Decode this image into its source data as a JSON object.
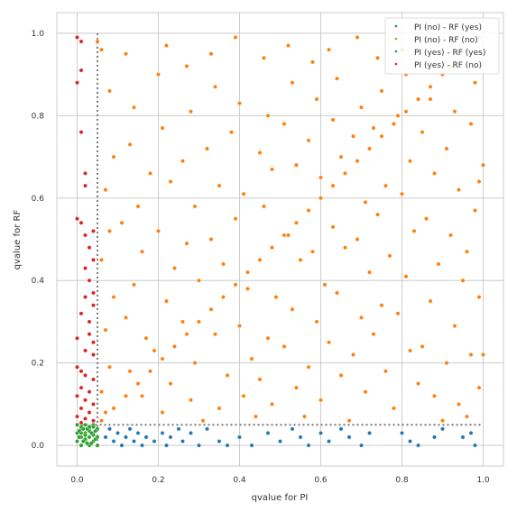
{
  "chart_data": {
    "type": "scatter",
    "title": "",
    "xlabel": "qvalue for PI",
    "ylabel": "qvalue for RF",
    "xlim": [
      -0.05,
      1.05
    ],
    "ylim": [
      -0.05,
      1.05
    ],
    "xticks": [
      "0.0",
      "0.2",
      "0.4",
      "0.6",
      "0.8",
      "1.0"
    ],
    "yticks": [
      "0.0",
      "0.2",
      "0.4",
      "0.6",
      "0.8",
      "1.0"
    ],
    "grid": true,
    "legend_position": "top-right",
    "threshold": 0.05,
    "series": [
      {
        "name": "PI (no)  - RF (yes)",
        "color": "#1f77b4",
        "points": [
          [
            0.07,
            0.02
          ],
          [
            0.08,
            0.04
          ],
          [
            0.09,
            0.01
          ],
          [
            0.1,
            0.03
          ],
          [
            0.11,
            0.0
          ],
          [
            0.12,
            0.02
          ],
          [
            0.13,
            0.04
          ],
          [
            0.14,
            0.01
          ],
          [
            0.15,
            0.03
          ],
          [
            0.16,
            0.0
          ],
          [
            0.17,
            0.02
          ],
          [
            0.19,
            0.01
          ],
          [
            0.21,
            0.03
          ],
          [
            0.22,
            0.0
          ],
          [
            0.23,
            0.02
          ],
          [
            0.25,
            0.04
          ],
          [
            0.26,
            0.01
          ],
          [
            0.28,
            0.03
          ],
          [
            0.3,
            0.0
          ],
          [
            0.32,
            0.04
          ],
          [
            0.35,
            0.01
          ],
          [
            0.37,
            0.0
          ],
          [
            0.4,
            0.02
          ],
          [
            0.43,
            0.0
          ],
          [
            0.47,
            0.03
          ],
          [
            0.5,
            0.01
          ],
          [
            0.53,
            0.04
          ],
          [
            0.55,
            0.02
          ],
          [
            0.57,
            0.0
          ],
          [
            0.6,
            0.03
          ],
          [
            0.62,
            0.01
          ],
          [
            0.65,
            0.04
          ],
          [
            0.67,
            0.02
          ],
          [
            0.7,
            0.0
          ],
          [
            0.72,
            0.03
          ],
          [
            0.8,
            0.03
          ],
          [
            0.82,
            0.01
          ],
          [
            0.84,
            0.0
          ],
          [
            0.88,
            0.02
          ],
          [
            0.9,
            0.04
          ],
          [
            0.95,
            0.02
          ],
          [
            0.97,
            0.03
          ],
          [
            0.98,
            0.0
          ]
        ]
      },
      {
        "name": "PI (no)  - RF (no)",
        "color": "#ff7f0e",
        "points": [
          [
            0.05,
            0.98
          ],
          [
            0.06,
            0.96
          ],
          [
            0.08,
            0.86
          ],
          [
            0.09,
            0.7
          ],
          [
            0.07,
            0.62
          ],
          [
            0.08,
            0.52
          ],
          [
            0.06,
            0.45
          ],
          [
            0.09,
            0.36
          ],
          [
            0.07,
            0.28
          ],
          [
            0.08,
            0.19
          ],
          [
            0.06,
            0.13
          ],
          [
            0.07,
            0.08
          ],
          [
            0.12,
            0.95
          ],
          [
            0.14,
            0.82
          ],
          [
            0.13,
            0.73
          ],
          [
            0.15,
            0.58
          ],
          [
            0.11,
            0.54
          ],
          [
            0.16,
            0.47
          ],
          [
            0.14,
            0.39
          ],
          [
            0.12,
            0.31
          ],
          [
            0.17,
            0.26
          ],
          [
            0.13,
            0.18
          ],
          [
            0.16,
            0.12
          ],
          [
            0.18,
            0.66
          ],
          [
            0.2,
            0.9
          ],
          [
            0.22,
            0.97
          ],
          [
            0.21,
            0.77
          ],
          [
            0.23,
            0.64
          ],
          [
            0.2,
            0.52
          ],
          [
            0.24,
            0.43
          ],
          [
            0.22,
            0.35
          ],
          [
            0.19,
            0.23
          ],
          [
            0.23,
            0.15
          ],
          [
            0.21,
            0.08
          ],
          [
            0.27,
            0.92
          ],
          [
            0.28,
            0.81
          ],
          [
            0.26,
            0.69
          ],
          [
            0.29,
            0.58
          ],
          [
            0.27,
            0.49
          ],
          [
            0.3,
            0.4
          ],
          [
            0.26,
            0.3
          ],
          [
            0.29,
            0.2
          ],
          [
            0.28,
            0.11
          ],
          [
            0.31,
            0.06
          ],
          [
            0.33,
            0.95
          ],
          [
            0.34,
            0.87
          ],
          [
            0.32,
            0.72
          ],
          [
            0.35,
            0.63
          ],
          [
            0.33,
            0.5
          ],
          [
            0.36,
            0.44
          ],
          [
            0.34,
            0.27
          ],
          [
            0.37,
            0.17
          ],
          [
            0.35,
            0.09
          ],
          [
            0.39,
            0.99
          ],
          [
            0.4,
            0.83
          ],
          [
            0.38,
            0.76
          ],
          [
            0.41,
            0.61
          ],
          [
            0.39,
            0.55
          ],
          [
            0.42,
            0.38
          ],
          [
            0.4,
            0.29
          ],
          [
            0.43,
            0.21
          ],
          [
            0.41,
            0.12
          ],
          [
            0.44,
            0.07
          ],
          [
            0.46,
            0.94
          ],
          [
            0.47,
            0.8
          ],
          [
            0.45,
            0.71
          ],
          [
            0.48,
            0.67
          ],
          [
            0.46,
            0.58
          ],
          [
            0.49,
            0.36
          ],
          [
            0.47,
            0.26
          ],
          [
            0.45,
            0.16
          ],
          [
            0.48,
            0.1
          ],
          [
            0.52,
            0.97
          ],
          [
            0.53,
            0.88
          ],
          [
            0.51,
            0.78
          ],
          [
            0.54,
            0.68
          ],
          [
            0.52,
            0.51
          ],
          [
            0.55,
            0.45
          ],
          [
            0.53,
            0.33
          ],
          [
            0.51,
            0.24
          ],
          [
            0.54,
            0.14
          ],
          [
            0.56,
            0.07
          ],
          [
            0.58,
            0.93
          ],
          [
            0.59,
            0.84
          ],
          [
            0.57,
            0.74
          ],
          [
            0.6,
            0.65
          ],
          [
            0.58,
            0.47
          ],
          [
            0.61,
            0.39
          ],
          [
            0.59,
            0.3
          ],
          [
            0.57,
            0.19
          ],
          [
            0.6,
            0.11
          ],
          [
            0.62,
            0.96
          ],
          [
            0.64,
            0.89
          ],
          [
            0.63,
            0.79
          ],
          [
            0.65,
            0.7
          ],
          [
            0.63,
            0.53
          ],
          [
            0.66,
            0.48
          ],
          [
            0.64,
            0.37
          ],
          [
            0.62,
            0.25
          ],
          [
            0.65,
            0.17
          ],
          [
            0.67,
            0.06
          ],
          [
            0.69,
            0.99
          ],
          [
            0.7,
            0.82
          ],
          [
            0.68,
            0.75
          ],
          [
            0.71,
            0.59
          ],
          [
            0.69,
            0.5
          ],
          [
            0.72,
            0.42
          ],
          [
            0.7,
            0.31
          ],
          [
            0.68,
            0.22
          ],
          [
            0.71,
            0.13
          ],
          [
            0.74,
            0.94
          ],
          [
            0.75,
            0.86
          ],
          [
            0.73,
            0.77
          ],
          [
            0.76,
            0.63
          ],
          [
            0.74,
            0.56
          ],
          [
            0.77,
            0.46
          ],
          [
            0.75,
            0.34
          ],
          [
            0.73,
            0.27
          ],
          [
            0.76,
            0.18
          ],
          [
            0.78,
            0.09
          ],
          [
            0.8,
            0.96
          ],
          [
            0.81,
            0.9
          ],
          [
            0.79,
            0.8
          ],
          [
            0.82,
            0.69
          ],
          [
            0.8,
            0.61
          ],
          [
            0.83,
            0.52
          ],
          [
            0.81,
            0.41
          ],
          [
            0.79,
            0.32
          ],
          [
            0.82,
            0.23
          ],
          [
            0.84,
            0.15
          ],
          [
            0.86,
            0.98
          ],
          [
            0.87,
            0.84
          ],
          [
            0.85,
            0.76
          ],
          [
            0.88,
            0.66
          ],
          [
            0.86,
            0.55
          ],
          [
            0.89,
            0.44
          ],
          [
            0.87,
            0.35
          ],
          [
            0.85,
            0.24
          ],
          [
            0.88,
            0.12
          ],
          [
            0.9,
            0.06
          ],
          [
            0.92,
            0.92
          ],
          [
            0.93,
            0.81
          ],
          [
            0.91,
            0.72
          ],
          [
            0.94,
            0.62
          ],
          [
            0.92,
            0.51
          ],
          [
            0.95,
            0.4
          ],
          [
            0.93,
            0.29
          ],
          [
            0.91,
            0.2
          ],
          [
            0.94,
            0.1
          ],
          [
            0.96,
            0.07
          ],
          [
            0.98,
            0.88
          ],
          [
            0.97,
            0.78
          ],
          [
            0.99,
            0.64
          ],
          [
            0.98,
            0.57
          ],
          [
            0.96,
            0.47
          ],
          [
            0.99,
            0.36
          ],
          [
            0.97,
            0.22
          ],
          [
            0.99,
            0.14
          ],
          [
            1.0,
            0.22
          ],
          [
            1.0,
            0.68
          ],
          [
            0.06,
            0.06
          ],
          [
            0.09,
            0.09
          ],
          [
            0.12,
            0.12
          ],
          [
            0.15,
            0.15
          ],
          [
            0.18,
            0.18
          ],
          [
            0.21,
            0.21
          ],
          [
            0.24,
            0.24
          ],
          [
            0.27,
            0.27
          ],
          [
            0.3,
            0.3
          ],
          [
            0.33,
            0.33
          ],
          [
            0.36,
            0.36
          ],
          [
            0.39,
            0.39
          ],
          [
            0.42,
            0.42
          ],
          [
            0.45,
            0.45
          ],
          [
            0.48,
            0.48
          ],
          [
            0.51,
            0.51
          ],
          [
            0.54,
            0.54
          ],
          [
            0.57,
            0.57
          ],
          [
            0.6,
            0.6
          ],
          [
            0.63,
            0.63
          ],
          [
            0.66,
            0.66
          ],
          [
            0.69,
            0.69
          ],
          [
            0.72,
            0.72
          ],
          [
            0.75,
            0.75
          ],
          [
            0.78,
            0.78
          ],
          [
            0.81,
            0.81
          ],
          [
            0.84,
            0.84
          ],
          [
            0.87,
            0.87
          ],
          [
            0.9,
            0.9
          ],
          [
            0.93,
            0.93
          ],
          [
            0.96,
            0.96
          ],
          [
            0.99,
            0.99
          ]
        ]
      },
      {
        "name": "PI (yes) - RF (yes)",
        "color": "#2ca02c",
        "points": [
          [
            0.0,
            0.01
          ],
          [
            0.0,
            0.03
          ],
          [
            0.01,
            0.0
          ],
          [
            0.01,
            0.02
          ],
          [
            0.01,
            0.04
          ],
          [
            0.02,
            0.01
          ],
          [
            0.02,
            0.03
          ],
          [
            0.02,
            0.05
          ],
          [
            0.03,
            0.0
          ],
          [
            0.03,
            0.02
          ],
          [
            0.03,
            0.04
          ],
          [
            0.04,
            0.01
          ],
          [
            0.04,
            0.03
          ],
          [
            0.04,
            0.05
          ],
          [
            0.05,
            0.0
          ],
          [
            0.05,
            0.02
          ],
          [
            0.05,
            0.04
          ],
          [
            0.0,
            0.05
          ],
          [
            0.01,
            0.045
          ],
          [
            0.02,
            0.015
          ],
          [
            0.03,
            0.035
          ],
          [
            0.04,
            0.025
          ],
          [
            0.005,
            0.02
          ],
          [
            0.015,
            0.01
          ],
          [
            0.025,
            0.04
          ],
          [
            0.035,
            0.005
          ],
          [
            0.045,
            0.015
          ],
          [
            0.03,
            0.045
          ],
          [
            0.01,
            0.03
          ],
          [
            0.04,
            0.045
          ],
          [
            0.02,
            0.025
          ],
          [
            0.005,
            0.035
          ],
          [
            0.035,
            0.03
          ],
          [
            0.015,
            0.04
          ],
          [
            0.045,
            0.035
          ],
          [
            0.025,
            0.005
          ]
        ]
      },
      {
        "name": "PI (yes) - RF (no)",
        "color": "#d62728",
        "points": [
          [
            0.0,
            0.99
          ],
          [
            0.01,
            0.98
          ],
          [
            0.01,
            0.91
          ],
          [
            0.0,
            0.88
          ],
          [
            0.01,
            0.76
          ],
          [
            0.02,
            0.66
          ],
          [
            0.02,
            0.63
          ],
          [
            0.0,
            0.55
          ],
          [
            0.01,
            0.54
          ],
          [
            0.02,
            0.51
          ],
          [
            0.03,
            0.48
          ],
          [
            0.04,
            0.52
          ],
          [
            0.04,
            0.45
          ],
          [
            0.02,
            0.43
          ],
          [
            0.03,
            0.4
          ],
          [
            0.04,
            0.37
          ],
          [
            0.02,
            0.36
          ],
          [
            0.04,
            0.34
          ],
          [
            0.01,
            0.32
          ],
          [
            0.03,
            0.3
          ],
          [
            0.03,
            0.27
          ],
          [
            0.0,
            0.26
          ],
          [
            0.04,
            0.25
          ],
          [
            0.02,
            0.23
          ],
          [
            0.04,
            0.22
          ],
          [
            0.0,
            0.19
          ],
          [
            0.01,
            0.18
          ],
          [
            0.02,
            0.17
          ],
          [
            0.04,
            0.16
          ],
          [
            0.01,
            0.14
          ],
          [
            0.03,
            0.13
          ],
          [
            0.0,
            0.12
          ],
          [
            0.02,
            0.11
          ],
          [
            0.04,
            0.1
          ],
          [
            0.01,
            0.09
          ],
          [
            0.03,
            0.08
          ],
          [
            0.0,
            0.07
          ],
          [
            0.02,
            0.065
          ],
          [
            0.04,
            0.06
          ],
          [
            0.01,
            0.055
          ]
        ]
      }
    ]
  }
}
